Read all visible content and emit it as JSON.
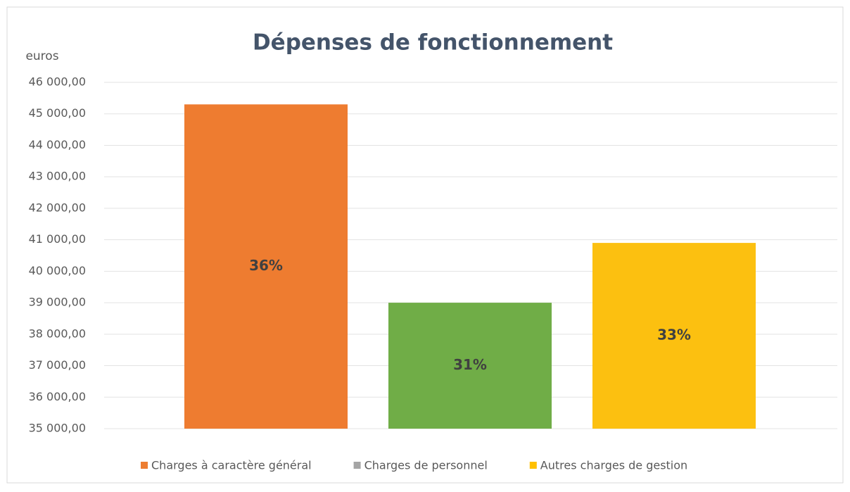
{
  "chart_data": {
    "type": "bar",
    "title": "Dépenses de fonctionnement",
    "y_label": "euros",
    "categories": [
      "Charges à caractère général",
      "Charges de personnel",
      "Autres charges de gestion"
    ],
    "values": [
      45300,
      39000,
      40900
    ],
    "colors": [
      "#ee7c30",
      "#70ad47",
      "#fcc010"
    ],
    "percent_labels": [
      "36%",
      "31%",
      "33%"
    ],
    "legend_colors": [
      "#ed7d31",
      "#a5a5a5",
      "#ffc000"
    ],
    "ylim": [
      35000,
      46000
    ],
    "yticks": [
      {
        "value": 35000,
        "label": "35 000,00"
      },
      {
        "value": 36000,
        "label": "36 000,00"
      },
      {
        "value": 37000,
        "label": "37 000,00"
      },
      {
        "value": 38000,
        "label": "38 000,00"
      },
      {
        "value": 39000,
        "label": "39 000,00"
      },
      {
        "value": 40000,
        "label": "40 000,00"
      },
      {
        "value": 41000,
        "label": "41 000,00"
      },
      {
        "value": 42000,
        "label": "42 000,00"
      },
      {
        "value": 43000,
        "label": "43 000,00"
      },
      {
        "value": 44000,
        "label": "44 000,00"
      },
      {
        "value": 45000,
        "label": "45 000,00"
      },
      {
        "value": 46000,
        "label": "46 000,00"
      }
    ],
    "grid": true,
    "legend": "bottom"
  }
}
